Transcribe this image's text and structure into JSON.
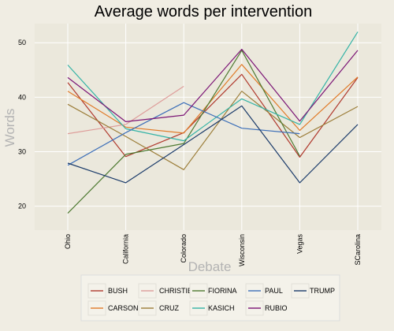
{
  "chart_data": {
    "type": "line",
    "title": "Average words per intervention",
    "xlabel": "Debate",
    "ylabel": "Words",
    "categories": [
      "Ohio",
      "California",
      "Colorado",
      "Wisconsin",
      "Vegas",
      "SCarolina"
    ],
    "ylim": [
      15.6,
      53.5
    ],
    "yticks": [
      20,
      30,
      40,
      50
    ],
    "grid": true,
    "legend_position": "bottom",
    "series": [
      {
        "name": "BUSH",
        "color": "#b03a2e",
        "values": [
          42.7,
          29.1,
          33.5,
          44.2,
          29.0,
          43.6
        ]
      },
      {
        "name": "CARSON",
        "color": "#e07b29",
        "values": [
          41.1,
          34.5,
          33.4,
          46.0,
          33.9,
          43.7
        ]
      },
      {
        "name": "CHRISTIE",
        "color": "#de9d9a",
        "values": [
          33.3,
          35.0,
          42.0,
          null,
          null,
          null
        ]
      },
      {
        "name": "CRUZ",
        "color": "#9c7e3a",
        "values": [
          38.7,
          32.8,
          26.7,
          41.1,
          32.6,
          38.3
        ]
      },
      {
        "name": "FIORINA",
        "color": "#4e7a32",
        "values": [
          18.7,
          29.5,
          31.5,
          48.6,
          29.2,
          null
        ]
      },
      {
        "name": "KASICH",
        "color": "#34b3a6",
        "values": [
          45.9,
          34.2,
          32.0,
          39.7,
          35.0,
          52.0
        ]
      },
      {
        "name": "PAUL",
        "color": "#3d6fb8",
        "values": [
          27.5,
          33.5,
          39.0,
          34.3,
          33.3,
          null
        ]
      },
      {
        "name": "RUBIO",
        "color": "#7b1475",
        "values": [
          43.6,
          35.5,
          36.7,
          48.8,
          35.6,
          48.6
        ]
      },
      {
        "name": "TRUMP",
        "color": "#1c3c6b",
        "values": [
          27.9,
          24.3,
          31.3,
          38.4,
          24.3,
          35.0
        ]
      }
    ]
  }
}
